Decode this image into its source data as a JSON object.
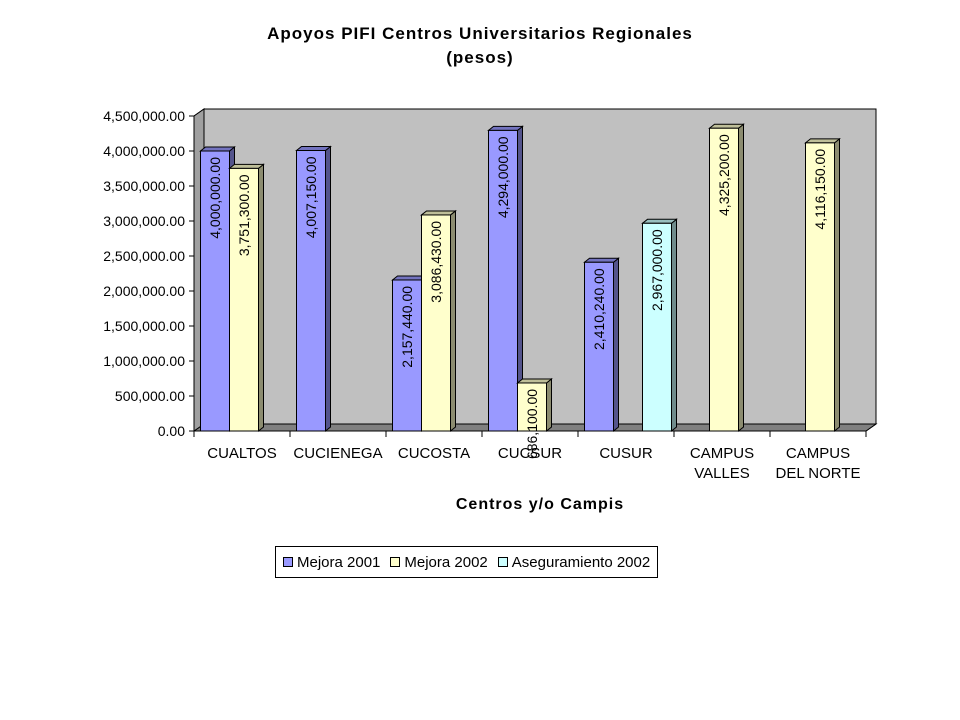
{
  "chart_data": {
    "type": "bar",
    "title": [
      "Apoyos PIFI Centros Universitarios Regionales",
      "(pesos)"
    ],
    "xlabel": "Centros y/o Campis",
    "ylabel": "",
    "ylim": [
      0,
      4500000
    ],
    "yticks": [
      0,
      500000,
      1000000,
      1500000,
      2000000,
      2500000,
      3000000,
      3500000,
      4000000,
      4500000
    ],
    "ytick_labels": [
      "0.00",
      "500,000.00",
      "1,000,000.00",
      "1,500,000.00",
      "2,000,000.00",
      "2,500,000.00",
      "3,000,000.00",
      "3,500,000.00",
      "4,000,000.00",
      "4,500,000.00"
    ],
    "categories": [
      [
        "CUALTOS"
      ],
      [
        "CUCIENEGA"
      ],
      [
        "CUCOSTA"
      ],
      [
        "CUCSUR"
      ],
      [
        "CUSUR"
      ],
      [
        "CAMPUS",
        "VALLES"
      ],
      [
        "CAMPUS",
        "DEL NORTE"
      ]
    ],
    "series": [
      {
        "name": "Mejora 2001",
        "color": "#9999ff",
        "values": [
          4000000,
          4007150,
          2157440,
          4294000,
          2410240,
          null,
          null
        ],
        "labels": [
          "4,000,000.00",
          "4,007,150.00",
          "2,157,440.00",
          "4,294,000.00",
          "2,410,240.00",
          null,
          null
        ]
      },
      {
        "name": "Mejora 2002",
        "color": "#ffffcc",
        "values": [
          3751300,
          null,
          3086430,
          686100,
          null,
          4325200,
          4116150
        ],
        "labels": [
          "3,751,300.00",
          null,
          "3,086,430.00",
          "686,100.00",
          null,
          "4,325,200.00",
          "4,116,150.00"
        ]
      },
      {
        "name": "Aseguramiento 2002",
        "color": "#ccffff",
        "values": [
          null,
          null,
          null,
          null,
          2967000,
          null,
          null
        ],
        "labels": [
          null,
          null,
          null,
          null,
          "2,967,000.00",
          null,
          null
        ]
      }
    ],
    "legend": "bottom",
    "grid": false,
    "plot_background": "#c0c0c0"
  }
}
